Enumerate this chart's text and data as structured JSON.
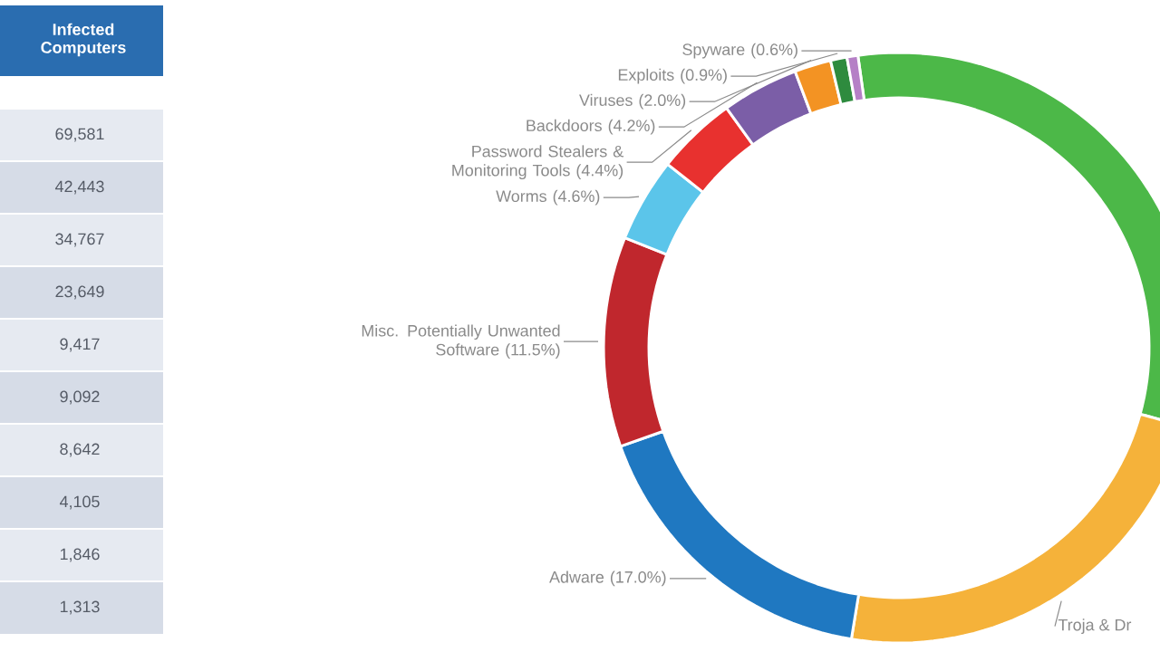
{
  "chart_data": [
    {
      "type": "other",
      "title": "Infected Computers",
      "annotations": [
        "69,581",
        "42,443",
        "34,767",
        "23,649",
        "9,417",
        "9,092",
        "8,642",
        "4,105",
        "1,846",
        "1,313"
      ]
    },
    {
      "type": "donut",
      "categories": [
        null,
        "Troja & Dr",
        "Adware",
        "Misc. Potentially Unwanted Software",
        "Worms",
        "Password Stealers & Monitoring Tools",
        "Backdoors",
        "Viruses",
        "Exploits",
        "Spyware"
      ],
      "values": [
        31.5,
        23.3,
        17.0,
        11.5,
        4.6,
        4.4,
        4.2,
        2.0,
        0.9,
        0.6
      ],
      "value_labels": [
        null,
        null,
        "(17.0%)",
        "(11.5%)",
        "(4.6%)",
        "(4.4%)",
        "(4.2%)",
        "(2.0%)",
        "(0.9%)",
        "(0.6%)"
      ],
      "colors": [
        "#4cb848",
        "#f5b23a",
        "#1f78c1",
        "#c0272d",
        "#5bc5ea",
        "#e8312f",
        "#7b5ea7",
        "#f39323",
        "#2e8b3e",
        "#b57fc6"
      ]
    }
  ]
}
